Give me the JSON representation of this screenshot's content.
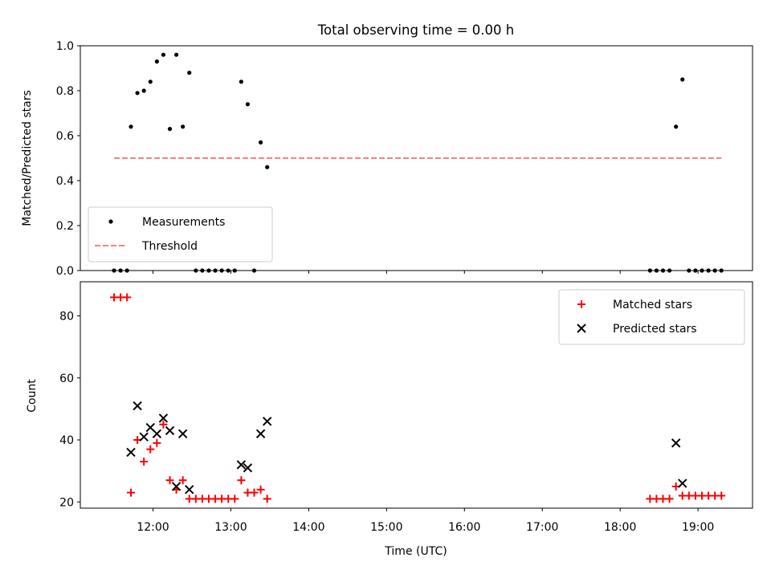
{
  "title": "Total observing time = 0.00 h",
  "xlabel": "Time (UTC)",
  "x_ticks": [
    "12:00",
    "13:00",
    "14:00",
    "15:00",
    "16:00",
    "17:00",
    "18:00",
    "19:00"
  ],
  "chart_data": [
    {
      "type": "scatter",
      "ylabel": "Matched/Predicted stars",
      "xlim": [
        "11:04",
        "19:42"
      ],
      "ylim": [
        0,
        1.0
      ],
      "y_ticks": [
        "0.0",
        "0.2",
        "0.4",
        "0.6",
        "0.8",
        "1.0"
      ],
      "legend_position": "lower-left",
      "series": [
        {
          "name": "Measurements",
          "marker": "dot",
          "color": "#000000",
          "points": [
            [
              "11:30",
              0.0
            ],
            [
              "11:35",
              0.0
            ],
            [
              "11:40",
              0.0
            ],
            [
              "11:43",
              0.64
            ],
            [
              "11:48",
              0.79
            ],
            [
              "11:53",
              0.8
            ],
            [
              "11:58",
              0.84
            ],
            [
              "12:03",
              0.93
            ],
            [
              "12:08",
              0.96
            ],
            [
              "12:13",
              0.63
            ],
            [
              "12:18",
              0.96
            ],
            [
              "12:23",
              0.64
            ],
            [
              "12:28",
              0.88
            ],
            [
              "12:33",
              0.0
            ],
            [
              "12:38",
              0.0
            ],
            [
              "12:43",
              0.0
            ],
            [
              "12:48",
              0.0
            ],
            [
              "12:53",
              0.0
            ],
            [
              "12:58",
              0.0
            ],
            [
              "13:03",
              0.0
            ],
            [
              "13:08",
              0.84
            ],
            [
              "13:13",
              0.74
            ],
            [
              "13:18",
              0.0
            ],
            [
              "13:23",
              0.57
            ],
            [
              "13:28",
              0.46
            ],
            [
              "18:23",
              0.0
            ],
            [
              "18:28",
              0.0
            ],
            [
              "18:33",
              0.0
            ],
            [
              "18:38",
              0.0
            ],
            [
              "18:43",
              0.64
            ],
            [
              "18:48",
              0.85
            ],
            [
              "18:53",
              0.0
            ],
            [
              "18:58",
              0.0
            ],
            [
              "19:03",
              0.0
            ],
            [
              "19:08",
              0.0
            ],
            [
              "19:13",
              0.0
            ],
            [
              "19:18",
              0.0
            ]
          ]
        },
        {
          "name": "Threshold",
          "type": "line",
          "style": "dashed",
          "color": "#ff8080",
          "points": [
            [
              "11:30",
              0.5
            ],
            [
              "19:18",
              0.5
            ]
          ]
        }
      ]
    },
    {
      "type": "scatter",
      "ylabel": "Count",
      "xlim": [
        "11:04",
        "19:42"
      ],
      "ylim": [
        18,
        91
      ],
      "y_ticks": [
        "20",
        "40",
        "60",
        "80"
      ],
      "legend_position": "upper-right",
      "series": [
        {
          "name": "Matched stars",
          "marker": "plus",
          "color": "#ff0000",
          "points": [
            [
              "11:30",
              86
            ],
            [
              "11:35",
              86
            ],
            [
              "11:40",
              86
            ],
            [
              "11:43",
              23
            ],
            [
              "11:48",
              40
            ],
            [
              "11:53",
              33
            ],
            [
              "11:58",
              37
            ],
            [
              "12:03",
              39
            ],
            [
              "12:08",
              45
            ],
            [
              "12:13",
              27
            ],
            [
              "12:18",
              24
            ],
            [
              "12:23",
              27
            ],
            [
              "12:28",
              21
            ],
            [
              "12:33",
              21
            ],
            [
              "12:38",
              21
            ],
            [
              "12:43",
              21
            ],
            [
              "12:48",
              21
            ],
            [
              "12:53",
              21
            ],
            [
              "12:58",
              21
            ],
            [
              "13:03",
              21
            ],
            [
              "13:08",
              27
            ],
            [
              "13:13",
              23
            ],
            [
              "13:18",
              23
            ],
            [
              "13:23",
              24
            ],
            [
              "13:28",
              21
            ],
            [
              "18:23",
              21
            ],
            [
              "18:28",
              21
            ],
            [
              "18:33",
              21
            ],
            [
              "18:38",
              21
            ],
            [
              "18:43",
              25
            ],
            [
              "18:48",
              22
            ],
            [
              "18:53",
              22
            ],
            [
              "18:58",
              22
            ],
            [
              "19:03",
              22
            ],
            [
              "19:08",
              22
            ],
            [
              "19:13",
              22
            ],
            [
              "19:18",
              22
            ]
          ]
        },
        {
          "name": "Predicted stars",
          "marker": "x",
          "color": "#000000",
          "points": [
            [
              "11:43",
              36
            ],
            [
              "11:48",
              51
            ],
            [
              "11:53",
              41
            ],
            [
              "11:58",
              44
            ],
            [
              "12:03",
              42
            ],
            [
              "12:08",
              47
            ],
            [
              "12:13",
              43
            ],
            [
              "12:18",
              25
            ],
            [
              "12:23",
              42
            ],
            [
              "12:28",
              24
            ],
            [
              "13:08",
              32
            ],
            [
              "13:13",
              31
            ],
            [
              "13:23",
              42
            ],
            [
              "13:28",
              46
            ],
            [
              "18:43",
              39
            ],
            [
              "18:48",
              26
            ]
          ]
        }
      ]
    }
  ]
}
